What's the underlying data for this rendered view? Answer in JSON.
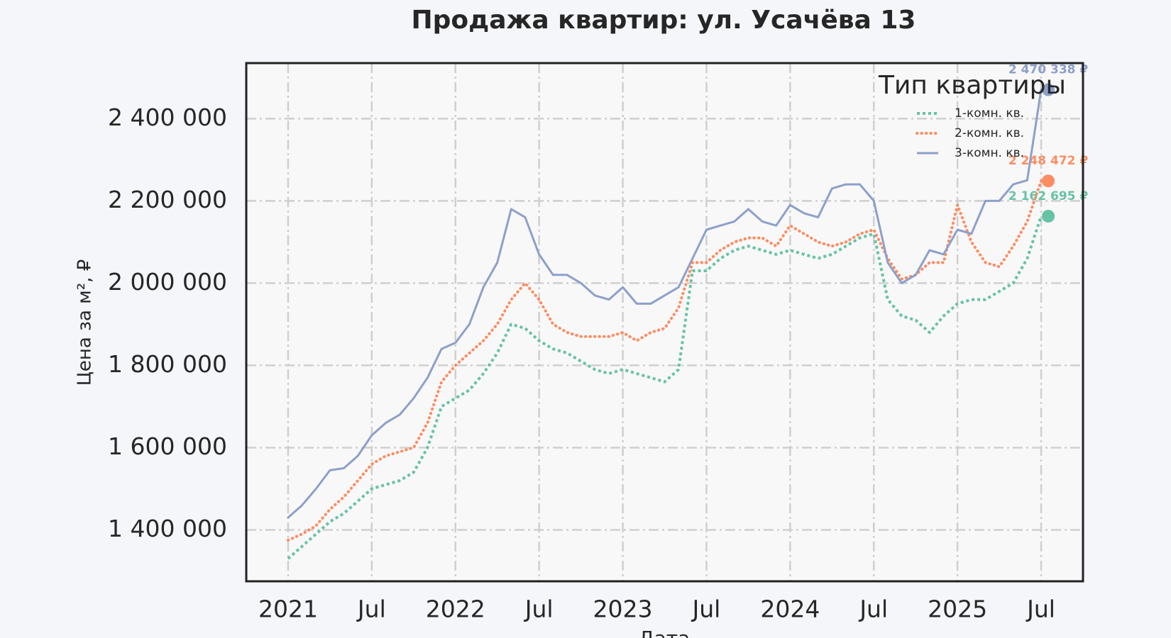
{
  "chart_data": {
    "type": "line",
    "title": "Продажа квартир: ул. Усачёва 13",
    "x_label": "Дата",
    "y_label": "Цена за м², ₽",
    "legend_title": "Тип квартиры",
    "legend": "upper right",
    "grid": true,
    "xlim": [
      "2020-10",
      "2025-10"
    ],
    "xticks": [
      {
        "value": "2021-01",
        "label": "2021"
      },
      {
        "value": "2021-07",
        "label": "Jul"
      },
      {
        "value": "2022-01",
        "label": "2022"
      },
      {
        "value": "2022-07",
        "label": "Jul"
      },
      {
        "value": "2023-01",
        "label": "2023"
      },
      {
        "value": "2023-07",
        "label": "Jul"
      },
      {
        "value": "2024-01",
        "label": "2024"
      },
      {
        "value": "2024-07",
        "label": "Jul"
      },
      {
        "value": "2025-01",
        "label": "2025"
      },
      {
        "value": "2025-07",
        "label": "Jul"
      }
    ],
    "ylim": [
      1275000,
      2535000
    ],
    "yticks": [
      {
        "value": 1400000,
        "label": "1 400 000"
      },
      {
        "value": 1600000,
        "label": "1 600 000"
      },
      {
        "value": 1800000,
        "label": "1 800 000"
      },
      {
        "value": 2000000,
        "label": "2 000 000"
      },
      {
        "value": 2200000,
        "label": "2 200 000"
      },
      {
        "value": 2400000,
        "label": "2 400 000"
      }
    ],
    "x": [
      "2021-01",
      "2021-02",
      "2021-03",
      "2021-04",
      "2021-05",
      "2021-06",
      "2021-07",
      "2021-08",
      "2021-09",
      "2021-10",
      "2021-11",
      "2021-12",
      "2022-01",
      "2022-02",
      "2022-03",
      "2022-04",
      "2022-05",
      "2022-06",
      "2022-07",
      "2022-08",
      "2022-09",
      "2022-10",
      "2022-11",
      "2022-12",
      "2023-01",
      "2023-02",
      "2023-03",
      "2023-04",
      "2023-05",
      "2023-06",
      "2023-07",
      "2023-08",
      "2023-09",
      "2023-10",
      "2023-11",
      "2023-12",
      "2024-01",
      "2024-02",
      "2024-03",
      "2024-04",
      "2024-05",
      "2024-06",
      "2024-07",
      "2024-08",
      "2024-09",
      "2024-10",
      "2024-11",
      "2024-12",
      "2025-01",
      "2025-02",
      "2025-03",
      "2025-04",
      "2025-05",
      "2025-06",
      "2025-07"
    ],
    "series": [
      {
        "name": "1-комн. кв.",
        "color": "#66c2a5",
        "linestyle": "dotted",
        "end_label": "2 162 695 ₽",
        "values": [
          1330000,
          1360000,
          1390000,
          1420000,
          1440000,
          1470000,
          1500000,
          1510000,
          1520000,
          1540000,
          1600000,
          1700000,
          1720000,
          1740000,
          1780000,
          1830000,
          1900000,
          1890000,
          1860000,
          1840000,
          1830000,
          1810000,
          1790000,
          1780000,
          1790000,
          1780000,
          1770000,
          1760000,
          1790000,
          2030000,
          2030000,
          2060000,
          2080000,
          2090000,
          2080000,
          2070000,
          2080000,
          2070000,
          2060000,
          2070000,
          2090000,
          2110000,
          2120000,
          1960000,
          1920000,
          1910000,
          1880000,
          1920000,
          1950000,
          1960000,
          1960000,
          1980000,
          2000000,
          2060000,
          2162695
        ]
      },
      {
        "name": "2-комн. кв.",
        "color": "#fc8d62",
        "linestyle": "dotted",
        "end_label": "2 248 472 ₽",
        "values": [
          1375000,
          1390000,
          1410000,
          1450000,
          1480000,
          1520000,
          1560000,
          1580000,
          1590000,
          1600000,
          1660000,
          1760000,
          1800000,
          1830000,
          1860000,
          1900000,
          1960000,
          2000000,
          1960000,
          1900000,
          1880000,
          1870000,
          1870000,
          1870000,
          1880000,
          1860000,
          1880000,
          1890000,
          1940000,
          2050000,
          2050000,
          2080000,
          2100000,
          2110000,
          2110000,
          2090000,
          2140000,
          2120000,
          2100000,
          2090000,
          2100000,
          2120000,
          2130000,
          2060000,
          2010000,
          2020000,
          2050000,
          2050000,
          2190000,
          2100000,
          2050000,
          2040000,
          2090000,
          2150000,
          2248472
        ]
      },
      {
        "name": "3-комн. кв.",
        "color": "#8da0cb",
        "linestyle": "solid",
        "end_label": "2 470 338 ₽",
        "values": [
          1430000,
          1460000,
          1500000,
          1545000,
          1550000,
          1580000,
          1630000,
          1660000,
          1680000,
          1720000,
          1770000,
          1840000,
          1855000,
          1900000,
          1990000,
          2050000,
          2180000,
          2160000,
          2070000,
          2020000,
          2020000,
          2000000,
          1970000,
          1960000,
          1990000,
          1950000,
          1950000,
          1970000,
          1990000,
          2060000,
          2130000,
          2140000,
          2150000,
          2180000,
          2150000,
          2140000,
          2190000,
          2170000,
          2160000,
          2230000,
          2240000,
          2240000,
          2200000,
          2050000,
          2000000,
          2020000,
          2080000,
          2070000,
          2130000,
          2120000,
          2200000,
          2200000,
          2240000,
          2250000,
          2470338
        ]
      }
    ]
  }
}
